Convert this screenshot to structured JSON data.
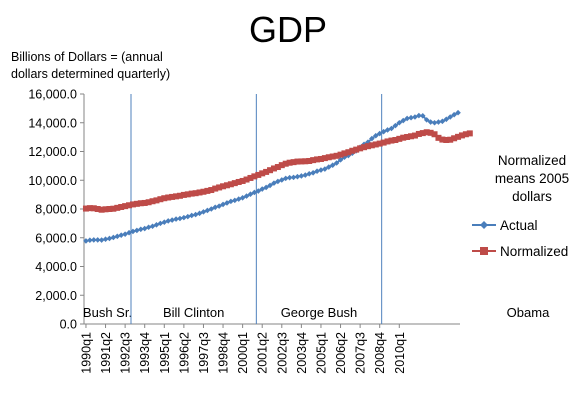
{
  "chart_data": {
    "type": "line",
    "title": "GDP",
    "ylabel": "Billions of Dollars = (annual dollars determined quarterly)",
    "ylabel_lines": [
      "Billions of Dollars = (annual",
      "dollars determined quarterly)"
    ],
    "ylim": [
      0,
      16000
    ],
    "yticks": [
      "0.0",
      "2,000.0",
      "4,000.0",
      "6,000.0",
      "8,000.0",
      "10,000.0",
      "12,000.0",
      "14,000.0",
      "16,000.0"
    ],
    "ytick_values": [
      0,
      2000,
      4000,
      6000,
      8000,
      10000,
      12000,
      14000,
      16000
    ],
    "x_start": "1990q1",
    "x_labels": [
      "1990q1",
      "1991q2",
      "1992q3",
      "1993q4",
      "1995q1",
      "1996q2",
      "1997q3",
      "1998q4",
      "2000q1",
      "2001q2",
      "2002q3",
      "2003q4",
      "2005q1",
      "2006q2",
      "2007q3",
      "2008q4",
      "2010q1"
    ],
    "grid": false,
    "note": "Normalized means 2005 dollars",
    "note_lines": [
      "Normalized",
      "means 2005",
      "dollars"
    ],
    "eras": [
      {
        "label": "Bush Sr.",
        "start": "1989q1"
      },
      {
        "label": "Bill Clinton",
        "start": "1993q1"
      },
      {
        "label": "George Bush",
        "start": "2001q1"
      },
      {
        "label": "Obama",
        "start": "2009q1"
      }
    ],
    "series": [
      {
        "name": "Actual",
        "color": "#4a7ebb",
        "marker": "diamond",
        "values": [
          5780,
          5830,
          5850,
          5850,
          5840,
          5900,
          5950,
          6020,
          6100,
          6180,
          6250,
          6350,
          6440,
          6510,
          6590,
          6640,
          6730,
          6800,
          6900,
          7000,
          7080,
          7170,
          7230,
          7300,
          7340,
          7400,
          7470,
          7550,
          7610,
          7700,
          7800,
          7900,
          8000,
          8120,
          8200,
          8320,
          8420,
          8530,
          8600,
          8690,
          8780,
          8900,
          9030,
          9150,
          9250,
          9390,
          9500,
          9640,
          9800,
          9920,
          10020,
          10130,
          10180,
          10200,
          10250,
          10300,
          10360,
          10450,
          10520,
          10630,
          10710,
          10780,
          10920,
          11050,
          11200,
          11420,
          11600,
          11720,
          11880,
          12050,
          12300,
          12500,
          12650,
          12900,
          13100,
          13250,
          13380,
          13500,
          13600,
          13800,
          14000,
          14150,
          14300,
          14350,
          14400,
          14500,
          14480,
          14200,
          14050,
          14000,
          14050,
          14100,
          14240,
          14400,
          14560,
          14700
        ]
      },
      {
        "name": "Normalized",
        "color": "#be4b48",
        "marker": "square",
        "values": [
          8030,
          8060,
          8050,
          8000,
          7950,
          7980,
          8000,
          8020,
          8080,
          8140,
          8200,
          8260,
          8320,
          8360,
          8400,
          8420,
          8470,
          8540,
          8600,
          8680,
          8750,
          8800,
          8840,
          8880,
          8920,
          8980,
          9020,
          9070,
          9100,
          9150,
          9200,
          9260,
          9320,
          9420,
          9500,
          9580,
          9650,
          9720,
          9800,
          9880,
          9950,
          10050,
          10160,
          10270,
          10370,
          10480,
          10580,
          10700,
          10820,
          10920,
          11050,
          11150,
          11220,
          11260,
          11300,
          11310,
          11320,
          11340,
          11400,
          11450,
          11480,
          11540,
          11600,
          11650,
          11700,
          11780,
          11870,
          11950,
          12050,
          12130,
          12220,
          12300,
          12370,
          12430,
          12490,
          12550,
          12620,
          12700,
          12760,
          12800,
          12880,
          12960,
          13010,
          13060,
          13110,
          13220,
          13280,
          13340,
          13300,
          13200,
          12950,
          12830,
          12800,
          12820,
          12920,
          13020,
          13120,
          13200,
          13260
        ]
      }
    ]
  }
}
